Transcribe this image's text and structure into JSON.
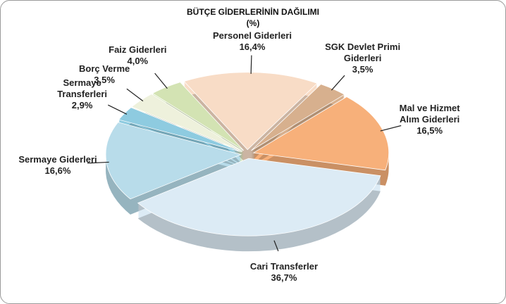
{
  "chart_data": {
    "type": "pie",
    "title": "BÜTÇE GİDERLERİNİN DAĞILIMI",
    "subtitle": "(%)",
    "categories": [
      "Personel Giderleri",
      "SGK Devlet Primi Giderleri",
      "Mal ve Hizmet Alım Giderleri",
      "Cari Transferler",
      "Sermaye Giderleri",
      "Sermaye Transferleri",
      "Borç Verme",
      "Faiz Giderleri"
    ],
    "values": [
      16.4,
      3.5,
      16.5,
      36.7,
      16.6,
      2.9,
      3.5,
      4.0
    ],
    "value_labels": [
      "16,4%",
      "3,5%",
      "16,5%",
      "36,7%",
      "16,6%",
      "2,9%",
      "3,5%",
      "4,0%"
    ],
    "colors": [
      "#f8dcc6",
      "#d7b08e",
      "#f7b07a",
      "#dcebf5",
      "#b8dcea",
      "#8ecbe0",
      "#eef1dc",
      "#d3e3b3"
    ]
  }
}
